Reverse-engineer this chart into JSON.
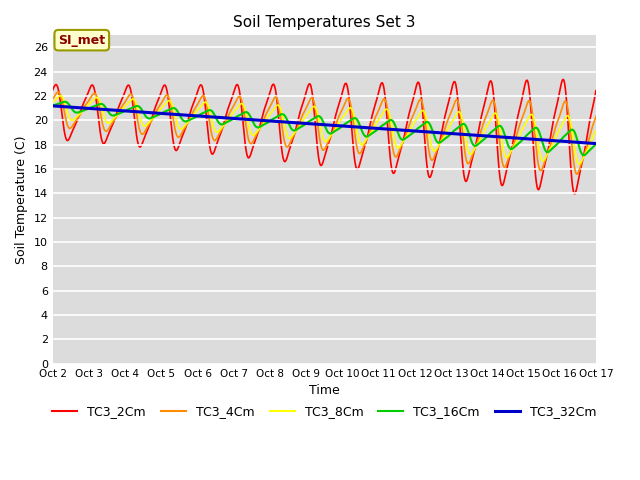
{
  "title": "Soil Temperatures Set 3",
  "xlabel": "Time",
  "ylabel": "Soil Temperature (C)",
  "ylim": [
    0,
    27
  ],
  "yticks": [
    0,
    2,
    4,
    6,
    8,
    10,
    12,
    14,
    16,
    18,
    20,
    22,
    24,
    26
  ],
  "xtick_labels": [
    "Oct 2",
    "Oct 3",
    "Oct 4",
    "Oct 5",
    "Oct 6",
    "Oct 7",
    "Oct 8",
    "Oct 9",
    "Oct 10",
    "Oct 11",
    "Oct 12",
    "Oct 13",
    "Oct 14",
    "Oct 15",
    "Oct 16",
    "Oct 17"
  ],
  "series": [
    "TC3_2Cm",
    "TC3_4Cm",
    "TC3_8Cm",
    "TC3_16Cm",
    "TC3_32Cm"
  ],
  "colors": [
    "#ff0000",
    "#ff8c00",
    "#ffff00",
    "#00cc00",
    "#0000cd"
  ],
  "linewidths": [
    1.2,
    1.2,
    1.2,
    1.5,
    2.2
  ],
  "annotation_text": "SI_met",
  "bg_color": "#dcdcdc",
  "white_grid_color": "#ffffff",
  "legend_fontsize": 9
}
